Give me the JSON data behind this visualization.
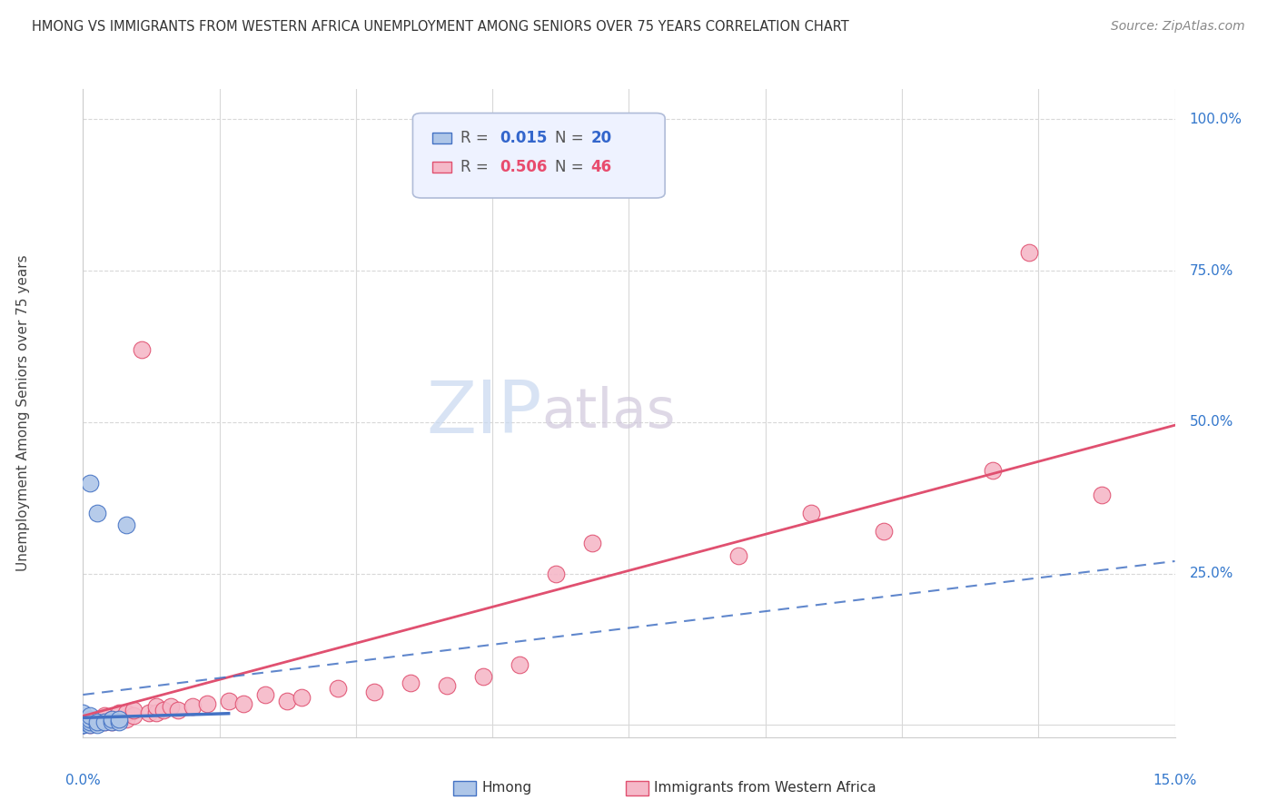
{
  "title": "HMONG VS IMMIGRANTS FROM WESTERN AFRICA UNEMPLOYMENT AMONG SENIORS OVER 75 YEARS CORRELATION CHART",
  "source": "Source: ZipAtlas.com",
  "ylabel": "Unemployment Among Seniors over 75 years",
  "xmin": 0.0,
  "xmax": 0.15,
  "ymin": -0.02,
  "ymax": 1.05,
  "hmong_R": 0.015,
  "hmong_N": 20,
  "western_africa_R": 0.506,
  "western_africa_N": 46,
  "hmong_color": "#aec6e8",
  "western_africa_color": "#f5b8c8",
  "hmong_line_color": "#4472c4",
  "western_africa_line_color": "#e05070",
  "watermark_zip_color": "#c8d8ee",
  "watermark_atlas_color": "#d8c8d8",
  "hmong_points_x": [
    0.0,
    0.0,
    0.0,
    0.0,
    0.0,
    0.0,
    0.001,
    0.001,
    0.001,
    0.001,
    0.001,
    0.002,
    0.002,
    0.002,
    0.003,
    0.004,
    0.004,
    0.005,
    0.005,
    0.006
  ],
  "hmong_points_y": [
    0.0,
    0.0,
    0.0,
    0.005,
    0.01,
    0.02,
    0.0,
    0.005,
    0.01,
    0.015,
    0.4,
    0.0,
    0.005,
    0.35,
    0.005,
    0.005,
    0.01,
    0.005,
    0.01,
    0.33
  ],
  "wa_points_x": [
    0.0,
    0.0,
    0.0,
    0.001,
    0.001,
    0.001,
    0.002,
    0.002,
    0.003,
    0.003,
    0.004,
    0.004,
    0.005,
    0.005,
    0.006,
    0.006,
    0.007,
    0.007,
    0.008,
    0.009,
    0.01,
    0.01,
    0.011,
    0.012,
    0.013,
    0.015,
    0.017,
    0.02,
    0.022,
    0.025,
    0.028,
    0.03,
    0.035,
    0.04,
    0.045,
    0.05,
    0.055,
    0.06,
    0.065,
    0.07,
    0.09,
    0.1,
    0.11,
    0.125,
    0.13,
    0.14
  ],
  "wa_points_y": [
    0.0,
    0.005,
    0.01,
    0.0,
    0.005,
    0.01,
    0.005,
    0.01,
    0.005,
    0.015,
    0.005,
    0.01,
    0.01,
    0.02,
    0.01,
    0.02,
    0.015,
    0.025,
    0.62,
    0.02,
    0.02,
    0.03,
    0.025,
    0.03,
    0.025,
    0.03,
    0.035,
    0.04,
    0.035,
    0.05,
    0.04,
    0.045,
    0.06,
    0.055,
    0.07,
    0.065,
    0.08,
    0.1,
    0.25,
    0.3,
    0.28,
    0.35,
    0.32,
    0.42,
    0.78,
    0.38
  ],
  "background_color": "#ffffff",
  "grid_color": "#d8d8d8",
  "legend_box_color": "#eef2ff",
  "legend_border_color": "#b0bcd8",
  "hmong_trendline_intercept": 0.03,
  "hmong_trendline_slope": 0.5,
  "wa_trendline_intercept": 0.0,
  "wa_trendline_slope": 3.5
}
